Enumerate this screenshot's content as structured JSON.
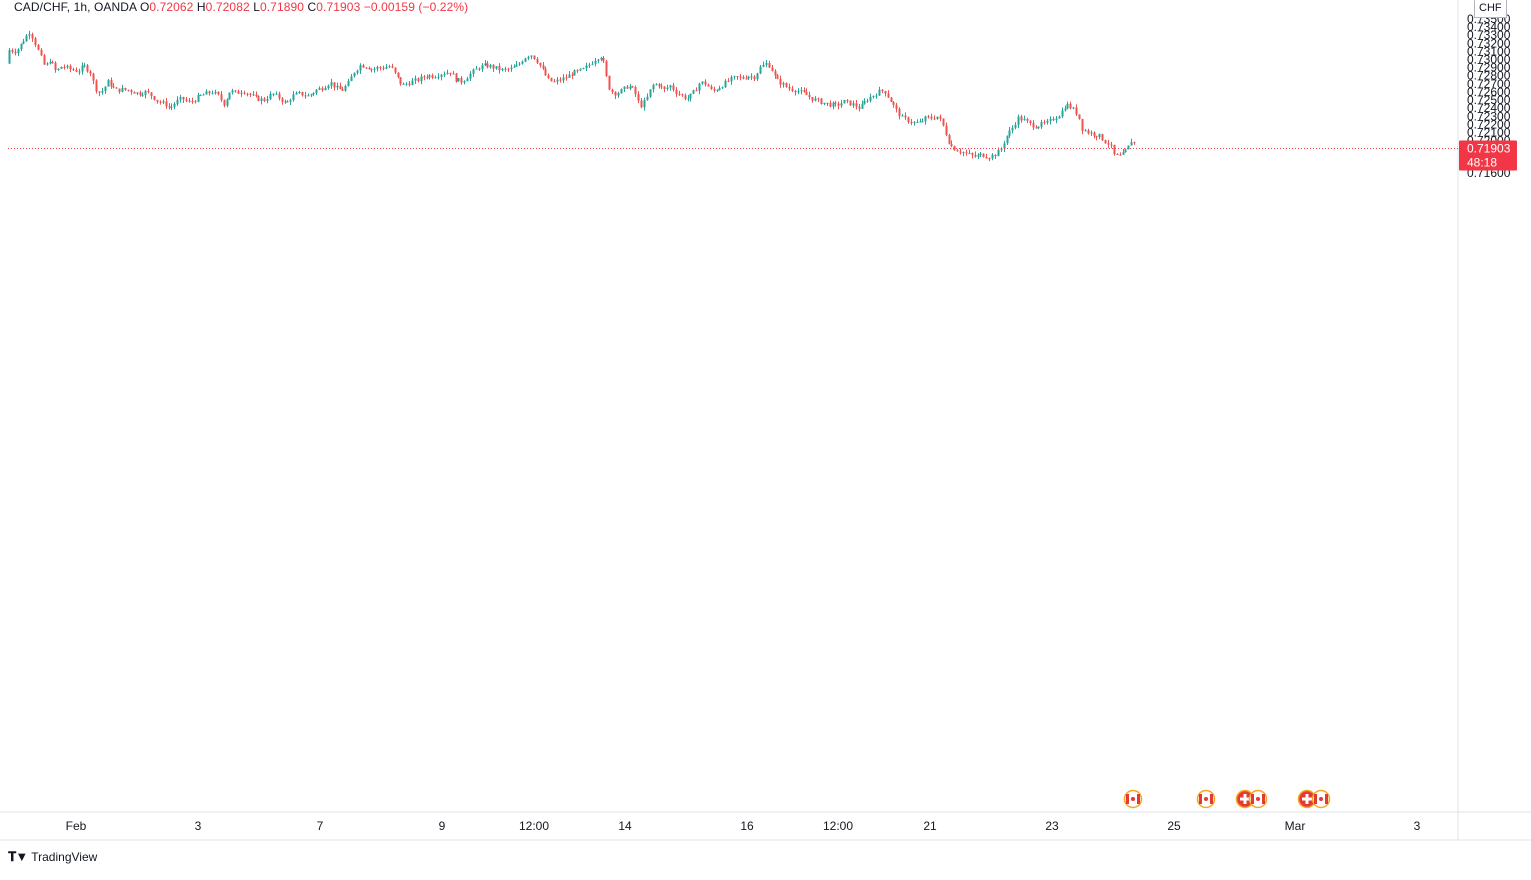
{
  "header": {
    "symbol": "CAD/CHF, 1h, OANDA",
    "open_label": "O",
    "open": "0.72062",
    "high_label": "H",
    "high": "0.72082",
    "low_label": "L",
    "low": "0.71890",
    "close_label": "C",
    "close": "0.71903",
    "change": "−0.00159 (−0.22%)"
  },
  "currency": "CHF",
  "price_tag": {
    "price": "0.71903",
    "countdown": "48:18"
  },
  "brand": {
    "logo_icon": "tradingview-logo-icon",
    "name": "TradingView"
  },
  "colors": {
    "up": "#26a69a",
    "down": "#ef5350",
    "last_price": "#f23645"
  },
  "chart_data": {
    "type": "candlestick",
    "title": "",
    "y_ticks": [
      "0.73500",
      "0.73400",
      "0.73300",
      "0.73200",
      "0.73100",
      "0.73000",
      "0.72900",
      "0.72800",
      "0.72700",
      "0.72600",
      "0.72500",
      "0.72400",
      "0.72300",
      "0.72200",
      "0.72100",
      "0.72000",
      "0.71800",
      "0.71700",
      "0.71600"
    ],
    "y_range": [
      0.7155,
      0.7353
    ],
    "x_ticks": [
      "Feb",
      "3",
      "7",
      "9",
      "12:00",
      "14",
      "16",
      "12:00",
      "21",
      "23",
      "25",
      "Mar",
      "3"
    ],
    "last_price": 0.71903,
    "grid": false,
    "price_path": [
      [
        0,
        0.7295
      ],
      [
        8,
        0.7312
      ],
      [
        16,
        0.731
      ],
      [
        24,
        0.7325
      ],
      [
        30,
        0.7335
      ],
      [
        35,
        0.732
      ],
      [
        40,
        0.7305
      ],
      [
        45,
        0.729
      ],
      [
        50,
        0.73
      ],
      [
        56,
        0.7285
      ],
      [
        62,
        0.7292
      ],
      [
        70,
        0.7288
      ],
      [
        78,
        0.7286
      ],
      [
        84,
        0.7292
      ],
      [
        90,
        0.7285
      ],
      [
        95,
        0.7265
      ],
      [
        100,
        0.7258
      ],
      [
        108,
        0.7273
      ],
      [
        115,
        0.7262
      ],
      [
        122,
        0.7263
      ],
      [
        130,
        0.7262
      ],
      [
        138,
        0.7258
      ],
      [
        146,
        0.726
      ],
      [
        152,
        0.7255
      ],
      [
        158,
        0.7248
      ],
      [
        165,
        0.7245
      ],
      [
        170,
        0.724
      ],
      [
        176,
        0.7248
      ],
      [
        182,
        0.7252
      ],
      [
        188,
        0.7247
      ],
      [
        194,
        0.725
      ],
      [
        200,
        0.7255
      ],
      [
        206,
        0.7258
      ],
      [
        212,
        0.726
      ],
      [
        218,
        0.7255
      ],
      [
        224,
        0.7245
      ],
      [
        230,
        0.7262
      ],
      [
        236,
        0.7258
      ],
      [
        242,
        0.7262
      ],
      [
        248,
        0.7258
      ],
      [
        256,
        0.7252
      ],
      [
        264,
        0.725
      ],
      [
        272,
        0.7258
      ],
      [
        280,
        0.7252
      ],
      [
        286,
        0.7245
      ],
      [
        292,
        0.7255
      ],
      [
        300,
        0.7258
      ],
      [
        308,
        0.7255
      ],
      [
        316,
        0.7262
      ],
      [
        322,
        0.7265
      ],
      [
        330,
        0.7272
      ],
      [
        336,
        0.7265
      ],
      [
        342,
        0.7262
      ],
      [
        348,
        0.727
      ],
      [
        354,
        0.7285
      ],
      [
        360,
        0.7293
      ],
      [
        366,
        0.7292
      ],
      [
        372,
        0.7288
      ],
      [
        378,
        0.729
      ],
      [
        384,
        0.729
      ],
      [
        390,
        0.7292
      ],
      [
        396,
        0.728
      ],
      [
        402,
        0.7268
      ],
      [
        410,
        0.7272
      ],
      [
        418,
        0.7275
      ],
      [
        426,
        0.728
      ],
      [
        434,
        0.728
      ],
      [
        442,
        0.7283
      ],
      [
        450,
        0.7285
      ],
      [
        456,
        0.7275
      ],
      [
        462,
        0.7273
      ],
      [
        470,
        0.7282
      ],
      [
        478,
        0.729
      ],
      [
        486,
        0.7293
      ],
      [
        494,
        0.729
      ],
      [
        502,
        0.7287
      ],
      [
        510,
        0.7288
      ],
      [
        518,
        0.7293
      ],
      [
        524,
        0.7302
      ],
      [
        530,
        0.7307
      ],
      [
        536,
        0.73
      ],
      [
        542,
        0.7288
      ],
      [
        548,
        0.7275
      ],
      [
        554,
        0.7272
      ],
      [
        560,
        0.7275
      ],
      [
        566,
        0.7278
      ],
      [
        572,
        0.7283
      ],
      [
        578,
        0.7285
      ],
      [
        584,
        0.7288
      ],
      [
        590,
        0.7295
      ],
      [
        596,
        0.7302
      ],
      [
        602,
        0.7305
      ],
      [
        606,
        0.728
      ],
      [
        610,
        0.7262
      ],
      [
        616,
        0.7258
      ],
      [
        622,
        0.7262
      ],
      [
        628,
        0.7268
      ],
      [
        634,
        0.7262
      ],
      [
        640,
        0.7242
      ],
      [
        646,
        0.725
      ],
      [
        652,
        0.7268
      ],
      [
        658,
        0.727
      ],
      [
        664,
        0.7262
      ],
      [
        670,
        0.7268
      ],
      [
        676,
        0.726
      ],
      [
        682,
        0.7255
      ],
      [
        688,
        0.7252
      ],
      [
        694,
        0.726
      ],
      [
        700,
        0.7272
      ],
      [
        706,
        0.727
      ],
      [
        712,
        0.726
      ],
      [
        718,
        0.7265
      ],
      [
        724,
        0.727
      ],
      [
        730,
        0.7275
      ],
      [
        736,
        0.7278
      ],
      [
        742,
        0.7277
      ],
      [
        748,
        0.728
      ],
      [
        754,
        0.7278
      ],
      [
        760,
        0.729
      ],
      [
        766,
        0.7295
      ],
      [
        770,
        0.7292
      ],
      [
        776,
        0.7275
      ],
      [
        782,
        0.727
      ],
      [
        788,
        0.7265
      ],
      [
        796,
        0.7262
      ],
      [
        804,
        0.7258
      ],
      [
        812,
        0.7252
      ],
      [
        820,
        0.7248
      ],
      [
        828,
        0.7245
      ],
      [
        836,
        0.7243
      ],
      [
        844,
        0.7248
      ],
      [
        852,
        0.7245
      ],
      [
        860,
        0.724
      ],
      [
        866,
        0.725
      ],
      [
        872,
        0.7255
      ],
      [
        878,
        0.726
      ],
      [
        884,
        0.7262
      ],
      [
        890,
        0.725
      ],
      [
        896,
        0.7238
      ],
      [
        902,
        0.7228
      ],
      [
        908,
        0.7225
      ],
      [
        914,
        0.7222
      ],
      [
        920,
        0.7222
      ],
      [
        926,
        0.7228
      ],
      [
        932,
        0.7228
      ],
      [
        938,
        0.723
      ],
      [
        944,
        0.7215
      ],
      [
        948,
        0.72
      ],
      [
        952,
        0.7192
      ],
      [
        958,
        0.7188
      ],
      [
        964,
        0.7185
      ],
      [
        970,
        0.7182
      ],
      [
        976,
        0.718
      ],
      [
        982,
        0.7183
      ],
      [
        988,
        0.718
      ],
      [
        994,
        0.7182
      ],
      [
        1000,
        0.7188
      ],
      [
        1006,
        0.7205
      ],
      [
        1012,
        0.7215
      ],
      [
        1018,
        0.7228
      ],
      [
        1024,
        0.7225
      ],
      [
        1030,
        0.722
      ],
      [
        1036,
        0.7218
      ],
      [
        1042,
        0.722
      ],
      [
        1048,
        0.7222
      ],
      [
        1054,
        0.7228
      ],
      [
        1060,
        0.7233
      ],
      [
        1066,
        0.7245
      ],
      [
        1072,
        0.724
      ],
      [
        1078,
        0.7232
      ],
      [
        1082,
        0.7215
      ],
      [
        1088,
        0.721
      ],
      [
        1094,
        0.7208
      ],
      [
        1100,
        0.7205
      ],
      [
        1106,
        0.7198
      ],
      [
        1110,
        0.7195
      ],
      [
        1114,
        0.7182
      ],
      [
        1118,
        0.718
      ],
      [
        1122,
        0.7182
      ],
      [
        1126,
        0.7188
      ],
      [
        1130,
        0.7195
      ],
      [
        1133,
        0.7206
      ],
      [
        1135,
        0.719
      ]
    ],
    "events": [
      {
        "x": 1133,
        "icon": "canada-flag-icon"
      },
      {
        "x": 1206,
        "icon": "canada-flag-icon"
      },
      {
        "x": 1245,
        "icon": "switzerland-flag-icon"
      },
      {
        "x": 1258,
        "icon": "canada-flag-icon"
      },
      {
        "x": 1307,
        "icon": "switzerland-flag-icon"
      },
      {
        "x": 1321,
        "icon": "canada-flag-icon"
      }
    ]
  }
}
